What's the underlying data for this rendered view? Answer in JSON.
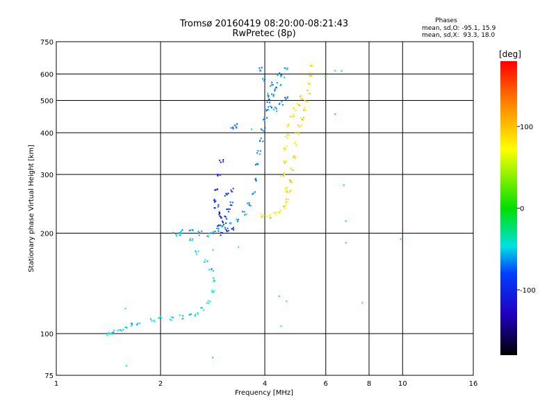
{
  "chart_data": {
    "type": "scatter",
    "title": "Tromsø 20160419 08:20:00-08:21:43",
    "subtitle": "RwPretec (8p)",
    "xlabel": "Frequency [MHz]",
    "ylabel": "Stationary phase Virtual Height [km]",
    "x_scale": "log",
    "y_scale": "log",
    "xlim": [
      1,
      16
    ],
    "ylim": [
      75,
      750
    ],
    "x_ticks": [
      1,
      2,
      4,
      6,
      8,
      10,
      16
    ],
    "x_tick_labels": [
      "1",
      "2",
      "4",
      "6",
      "8",
      "10",
      "16"
    ],
    "y_ticks": [
      75,
      100,
      200,
      300,
      400,
      500,
      600,
      750
    ],
    "y_tick_labels": [
      "75",
      "100",
      "200",
      "300",
      "400",
      "500",
      "600",
      "750"
    ],
    "grid": true,
    "phase_stats": {
      "title": "Phases",
      "o_line": "mean, sd,O: -95.1, 15.9",
      "x_line": "mean, sd,X:  93.3, 18.0"
    },
    "colorbar": {
      "label": "[deg]",
      "range": [
        -180,
        180
      ],
      "ticks": [
        100,
        0,
        -100
      ],
      "tick_labels": [
        "100",
        "0",
        "-100"
      ]
    },
    "colors": {
      "o_mode": "#1a3cff",
      "x_mode": "#f2e600",
      "low": "#1a9fd6",
      "grid": "#000000"
    },
    "traces": [
      {
        "mode": "O-low",
        "phase": -70,
        "points": [
          [
            1.42,
            100
          ],
          [
            1.46,
            101
          ],
          [
            1.52,
            102
          ],
          [
            1.58,
            104
          ],
          [
            1.65,
            106
          ],
          [
            1.72,
            107
          ],
          [
            1.9,
            110
          ],
          [
            2.0,
            111
          ],
          [
            2.15,
            111
          ],
          [
            2.3,
            112
          ],
          [
            2.45,
            113
          ],
          [
            2.55,
            114
          ],
          [
            2.65,
            118
          ],
          [
            2.75,
            125
          ],
          [
            2.82,
            135
          ],
          [
            2.85,
            145
          ],
          [
            2.8,
            155
          ],
          [
            2.7,
            165
          ],
          [
            2.55,
            175
          ],
          [
            2.45,
            190
          ],
          [
            2.3,
            198
          ],
          [
            2.2,
            199
          ]
        ]
      },
      {
        "mode": "O",
        "phase": -95,
        "points": [
          [
            2.3,
            202
          ],
          [
            2.45,
            205
          ],
          [
            2.6,
            200
          ],
          [
            2.75,
            198
          ],
          [
            2.85,
            200
          ],
          [
            2.95,
            205
          ],
          [
            3.05,
            208
          ],
          [
            3.2,
            212
          ],
          [
            3.35,
            218
          ],
          [
            3.5,
            230
          ],
          [
            3.6,
            245
          ],
          [
            3.7,
            265
          ],
          [
            3.75,
            290
          ],
          [
            3.8,
            320
          ],
          [
            3.85,
            350
          ],
          [
            3.9,
            380
          ],
          [
            3.95,
            410
          ],
          [
            4.0,
            440
          ],
          [
            4.05,
            470
          ],
          [
            4.1,
            500
          ],
          [
            4.2,
            520
          ],
          [
            4.3,
            540
          ],
          [
            4.4,
            560
          ],
          [
            4.5,
            590
          ],
          [
            4.6,
            620
          ],
          [
            4.4,
            600
          ],
          [
            4.2,
            560
          ],
          [
            4.05,
            520
          ],
          [
            3.95,
            580
          ],
          [
            3.9,
            620
          ],
          [
            4.15,
            480
          ],
          [
            4.3,
            470
          ],
          [
            4.45,
            490
          ],
          [
            4.6,
            510
          ],
          [
            3.3,
            420
          ],
          [
            3.2,
            410
          ]
        ]
      },
      {
        "mode": "O-scatter",
        "phase": -120,
        "points": [
          [
            2.85,
            250
          ],
          [
            2.9,
            240
          ],
          [
            2.95,
            230
          ],
          [
            3.0,
            225
          ],
          [
            3.05,
            215
          ],
          [
            3.1,
            222
          ],
          [
            3.15,
            235
          ],
          [
            3.2,
            245
          ],
          [
            2.9,
            270
          ],
          [
            2.95,
            300
          ],
          [
            3.0,
            330
          ],
          [
            3.1,
            260
          ],
          [
            3.2,
            270
          ],
          [
            2.95,
            210
          ],
          [
            3.0,
            200
          ],
          [
            3.1,
            205
          ],
          [
            3.25,
            205
          ]
        ]
      },
      {
        "mode": "X",
        "phase": 93,
        "points": [
          [
            3.95,
            225
          ],
          [
            4.1,
            225
          ],
          [
            4.25,
            228
          ],
          [
            4.4,
            232
          ],
          [
            4.55,
            240
          ],
          [
            4.65,
            250
          ],
          [
            4.7,
            265
          ],
          [
            4.75,
            285
          ],
          [
            4.8,
            310
          ],
          [
            4.85,
            340
          ],
          [
            4.9,
            370
          ],
          [
            4.95,
            400
          ],
          [
            5.05,
            420
          ],
          [
            5.15,
            440
          ],
          [
            5.25,
            470
          ],
          [
            5.3,
            500
          ],
          [
            5.35,
            530
          ],
          [
            5.4,
            560
          ],
          [
            5.45,
            600
          ],
          [
            5.5,
            640
          ],
          [
            4.55,
            330
          ],
          [
            4.6,
            360
          ],
          [
            4.65,
            390
          ],
          [
            4.7,
            420
          ],
          [
            4.8,
            450
          ],
          [
            4.9,
            470
          ],
          [
            5.0,
            490
          ],
          [
            5.1,
            510
          ],
          [
            4.6,
            270
          ],
          [
            4.5,
            300
          ]
        ]
      },
      {
        "mode": "stray",
        "phase": 0,
        "points": [
          [
            6.0,
            590
          ],
          [
            6.3,
            610
          ],
          [
            6.7,
            615
          ],
          [
            6.3,
            450
          ],
          [
            6.8,
            275
          ],
          [
            6.8,
            220
          ],
          [
            6.8,
            185
          ],
          [
            7.6,
            122
          ],
          [
            10.0,
            190
          ],
          [
            1.6,
            120
          ],
          [
            1.6,
            80
          ],
          [
            2.85,
            85
          ],
          [
            3.7,
            410
          ],
          [
            4.4,
            130
          ],
          [
            4.6,
            125
          ],
          [
            4.5,
            105
          ],
          [
            2.85,
            180
          ],
          [
            3.35,
            180
          ]
        ]
      }
    ]
  }
}
